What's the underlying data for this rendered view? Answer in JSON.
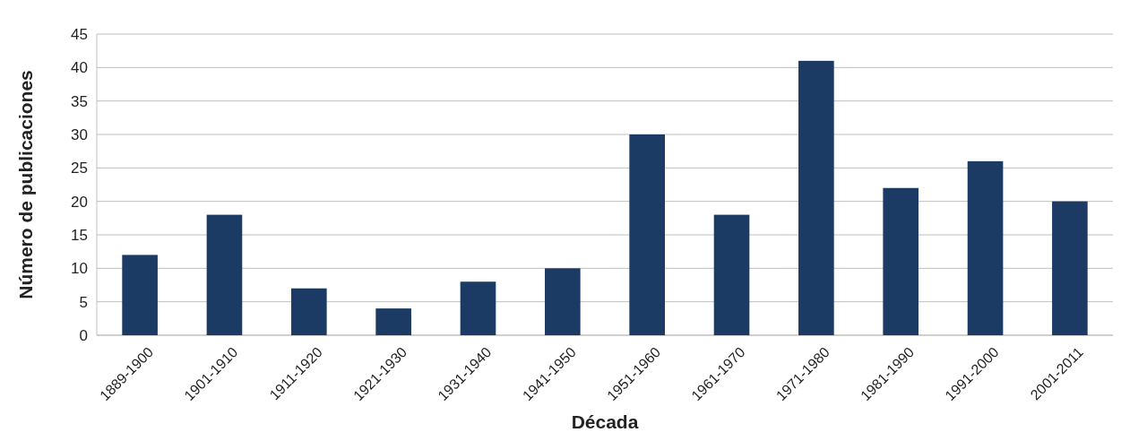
{
  "chart_data": {
    "type": "bar",
    "xlabel": "Década",
    "ylabel": "Número de publicaciones",
    "categories": [
      "1889-1900",
      "1901-1910",
      "1911-1920",
      "1921-1930",
      "1931-1940",
      "1941-1950",
      "1951-1960",
      "1961-1970",
      "1971-1980",
      "1981-1990",
      "1991-2000",
      "2001-2011"
    ],
    "values": [
      12,
      18,
      7,
      4,
      8,
      10,
      30,
      18,
      41,
      22,
      26,
      20
    ],
    "color": "#1b3a64",
    "ylim": [
      0,
      45
    ],
    "yticks": [
      0,
      5,
      10,
      15,
      20,
      25,
      30,
      35,
      40,
      45
    ],
    "grid": "y"
  }
}
